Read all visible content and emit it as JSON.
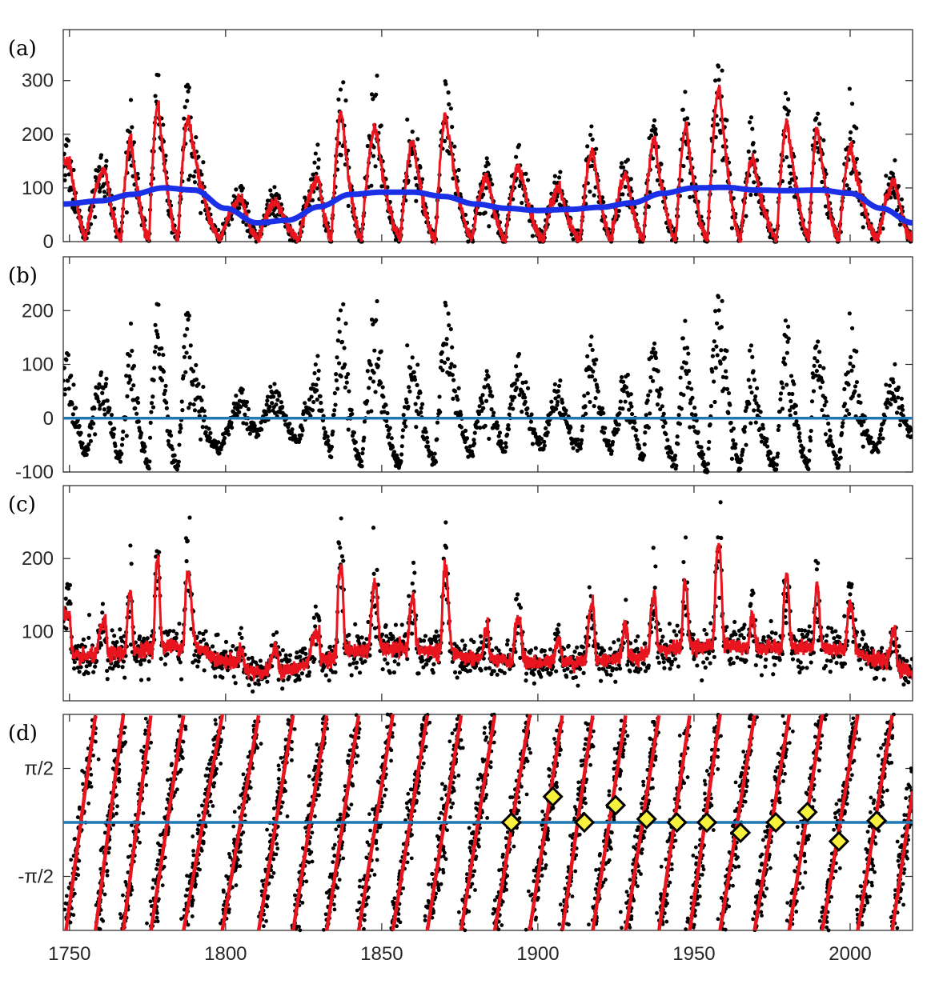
{
  "figure": {
    "x_axis": {
      "range": [
        1748,
        2020
      ],
      "ticks": [
        1750,
        1800,
        1850,
        1900,
        1950,
        2000
      ],
      "tick_labels": [
        "1750",
        "1800",
        "1850",
        "1900",
        "1950",
        "2000"
      ]
    },
    "colors": {
      "points": "#000000",
      "fit": "#e8141e",
      "trend": "#1a2fe6",
      "zero_line": "#1f77b4",
      "diamond_fill": "#f7f03c",
      "diamond_edge": "#000000"
    }
  },
  "chart_data": [
    {
      "panel_label": "(a)",
      "type": "scatter",
      "title": "",
      "xlabel": "",
      "ylabel": "",
      "xlim": [
        1748,
        2020
      ],
      "ylim": [
        0,
        395
      ],
      "y_ticks": [
        0,
        100,
        200,
        300
      ],
      "y_tick_labels": [
        "0",
        "100",
        "200",
        "300"
      ],
      "scatter_series": "monthly sunspot number (black dots)",
      "cycle_peak_years": [
        1750,
        1761.5,
        1769.7,
        1778.4,
        1788.1,
        1805.2,
        1816.4,
        1829.9,
        1837.2,
        1848.1,
        1860.1,
        1870.6,
        1883.9,
        1894.1,
        1907,
        1917.6,
        1928.4,
        1937.4,
        1947.5,
        1958.2,
        1968.9,
        1979.9,
        1989.6,
        2000.3,
        2014.3
      ],
      "cycle_peak_values": [
        150,
        135,
        190,
        255,
        230,
        80,
        75,
        115,
        240,
        210,
        185,
        235,
        120,
        140,
        100,
        170,
        125,
        190,
        215,
        285,
        155,
        225,
        210,
        175,
        110
      ],
      "cycle_min_years": [
        1755.2,
        1766.5,
        1775.5,
        1784.7,
        1798.3,
        1810.6,
        1823.3,
        1833.9,
        1843.5,
        1856,
        1867.2,
        1878.9,
        1889.6,
        1901.7,
        1913.6,
        1923.6,
        1933.8,
        1944.2,
        1954.3,
        1964.9,
        1976.5,
        1986.8,
        1996.4,
        2008.9,
        2020
      ],
      "series": [
        {
          "name": "running mean",
          "color": "#e8141e",
          "style": "line"
        },
        {
          "name": "long-term trend",
          "color": "#1a2fe6",
          "style": "thick line",
          "x": [
            1748,
            1760,
            1770,
            1780,
            1790,
            1800,
            1810,
            1820,
            1830,
            1840,
            1850,
            1860,
            1870,
            1880,
            1890,
            1900,
            1910,
            1920,
            1930,
            1940,
            1950,
            1960,
            1970,
            1980,
            1990,
            2000,
            2010,
            2020
          ],
          "values": [
            70,
            76,
            88,
            100,
            96,
            62,
            35,
            40,
            65,
            88,
            92,
            92,
            84,
            70,
            62,
            58,
            60,
            64,
            72,
            90,
            100,
            101,
            96,
            95,
            96,
            90,
            62,
            35
          ]
        }
      ]
    },
    {
      "panel_label": "(b)",
      "type": "scatter",
      "title": "",
      "xlabel": "",
      "ylabel": "",
      "xlim": [
        1748,
        2020
      ],
      "ylim": [
        -100,
        300
      ],
      "y_ticks": [
        -100,
        0,
        100,
        200
      ],
      "y_tick_labels": [
        "-100",
        "0",
        "100",
        "200"
      ],
      "scatter_series": "detrended sunspot number (black dots)",
      "reference_line": {
        "y": 0,
        "color": "#1f77b4"
      }
    },
    {
      "panel_label": "(c)",
      "type": "scatter",
      "title": "",
      "xlabel": "",
      "ylabel": "",
      "xlim": [
        1748,
        2020
      ],
      "ylim": [
        5,
        300
      ],
      "y_ticks": [
        100,
        200
      ],
      "y_tick_labels": [
        "100",
        "200"
      ],
      "scatter_series": "amplitude (black dots)",
      "series": [
        {
          "name": "smoothed amplitude",
          "color": "#e8141e",
          "style": "line"
        }
      ]
    },
    {
      "panel_label": "(d)",
      "type": "scatter",
      "title": "",
      "xlabel": "",
      "ylabel": "",
      "xlim": [
        1748,
        2020
      ],
      "ylim": [
        -3.1416,
        3.1416
      ],
      "y_ticks": [
        -1.5708,
        1.5708
      ],
      "y_tick_labels": [
        "-π/2",
        "π/2"
      ],
      "scatter_series": "instantaneous phase (black dots), fitted phase (red)",
      "phase_crossings": [
        1753.9,
        1762.8,
        1771.7,
        1780.5,
        1792.6,
        1805.3,
        1815.9,
        1827.4,
        1837.4,
        1847.9,
        1859.2,
        1870,
        1880.9,
        1891.5,
        1903.3,
        1912.4,
        1922.8,
        1933.5,
        1944.1,
        1953.2,
        1963.5,
        1975.3,
        1985.7,
        1996.5,
        2008.4,
        2018.6
      ],
      "reference_line": {
        "y": 0,
        "color": "#1f77b4"
      },
      "markers": {
        "shape": "diamond",
        "x": [
          1891.5,
          1904.8,
          1914.9,
          1924.9,
          1934.8,
          1944.5,
          1954.1,
          1964.9,
          1976.2,
          1986.3,
          1996.4,
          2008.5
        ],
        "y": [
          0,
          0.75,
          0,
          0.5,
          0.1,
          0,
          0,
          -0.3,
          0,
          0.3,
          -0.55,
          0.05
        ]
      }
    }
  ]
}
